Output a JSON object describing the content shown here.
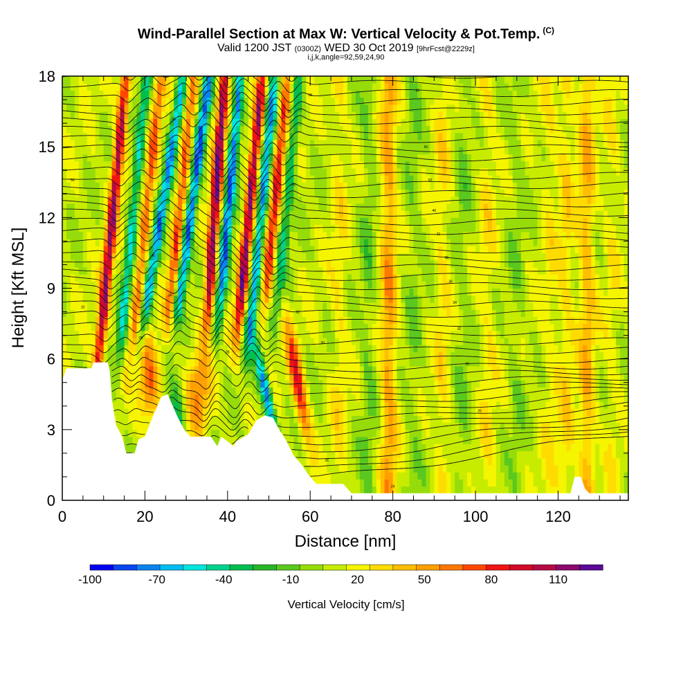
{
  "header": {
    "title": "Wind-Parallel Section at Max W: Vertical Velocity & Pot.Temp.",
    "copyright_mark": "(C)",
    "subtitle_prefix": "Valid 1200 JST",
    "subtitle_utc": "(0300Z)",
    "subtitle_date": "WED 30 Oct 2019",
    "subtitle_forecast": "[9hrFcst@2229z]",
    "indices": "i,j,k,angle=92,59,24,90"
  },
  "chart_data": {
    "type": "heatmap",
    "xlabel": "Distance [nm]",
    "ylabel": "Height [Kft MSL]",
    "xlim": [
      0,
      137
    ],
    "ylim": [
      0,
      18
    ],
    "x_ticks": [
      0,
      20,
      40,
      60,
      80,
      100,
      120
    ],
    "y_ticks": [
      0,
      3,
      6,
      9,
      12,
      15,
      18
    ],
    "colorbar": {
      "title": "Vertical Velocity [cm/s]",
      "min": -100,
      "max": 120,
      "step": 10,
      "tick_values": [
        -100,
        -70,
        -40,
        -10,
        20,
        50,
        80,
        110
      ],
      "tick_labels": [
        "-100",
        "-70",
        "-40",
        "-10",
        "20",
        "50",
        "80",
        "110"
      ],
      "colors": [
        "#0000f0",
        "#0a46f0",
        "#0a82f0",
        "#00bef0",
        "#00e6dc",
        "#00d28c",
        "#00be50",
        "#28b428",
        "#5ac81e",
        "#96dc0a",
        "#c8ec00",
        "#f5f500",
        "#ffdc00",
        "#ffbe00",
        "#ffa000",
        "#ff7800",
        "#ff4600",
        "#f01414",
        "#d20a28",
        "#b40a46",
        "#8c0a6e",
        "#5a0a96"
      ]
    },
    "terrain_profile": [
      [
        0,
        5.1
      ],
      [
        1,
        5.6
      ],
      [
        7,
        5.6
      ],
      [
        7.5,
        5.85
      ],
      [
        11,
        5.85
      ],
      [
        11.5,
        5.5
      ],
      [
        12,
        4.3
      ],
      [
        13,
        3.2
      ],
      [
        14.5,
        2.7
      ],
      [
        15.5,
        2.0
      ],
      [
        17.5,
        2.0
      ],
      [
        18.5,
        2.6
      ],
      [
        20,
        2.7
      ],
      [
        22,
        3.6
      ],
      [
        24,
        4.4
      ],
      [
        25.5,
        4.5
      ],
      [
        26.5,
        4.1
      ],
      [
        28,
        3.5
      ],
      [
        29.5,
        3.0
      ],
      [
        31,
        2.7
      ],
      [
        36,
        2.7
      ],
      [
        37.5,
        2.3
      ],
      [
        38.5,
        2.7
      ],
      [
        40,
        2.5
      ],
      [
        41.5,
        2.3
      ],
      [
        42,
        2.5
      ],
      [
        45,
        2.8
      ],
      [
        47,
        3.4
      ],
      [
        49,
        3.6
      ],
      [
        51,
        3.5
      ],
      [
        52.5,
        3.0
      ],
      [
        54,
        2.6
      ],
      [
        56,
        1.9
      ],
      [
        58,
        1.5
      ],
      [
        59.5,
        1.1
      ],
      [
        61.5,
        0.7
      ],
      [
        68,
        0.7
      ],
      [
        70,
        0.3
      ],
      [
        123,
        0.3
      ],
      [
        124,
        1.0
      ],
      [
        125.5,
        1.0
      ],
      [
        126.5,
        0.5
      ],
      [
        127.5,
        0.3
      ],
      [
        137,
        0.3
      ]
    ],
    "theta_contour_interval_K": 2,
    "theta_contour_labels": [
      {
        "x": 5,
        "y": 8.2,
        "text": "32"
      },
      {
        "x": 2.5,
        "y": 13.6,
        "text": "50"
      },
      {
        "x": 19,
        "y": 6.9,
        "text": "28"
      },
      {
        "x": 22,
        "y": 10.4,
        "text": "40"
      },
      {
        "x": 26,
        "y": 8.7,
        "text": "34"
      },
      {
        "x": 27,
        "y": 16.2,
        "text": "56"
      },
      {
        "x": 31,
        "y": 14.4,
        "text": "52"
      },
      {
        "x": 36,
        "y": 7.9,
        "text": "30"
      },
      {
        "x": 40,
        "y": 6.3,
        "text": "28"
      },
      {
        "x": 55,
        "y": 16.5,
        "text": "56"
      },
      {
        "x": 56,
        "y": 13.4,
        "text": "52"
      },
      {
        "x": 57,
        "y": 8.0,
        "text": "32"
      },
      {
        "x": 60,
        "y": 17.2,
        "text": "58"
      },
      {
        "x": 63,
        "y": 6.7,
        "text": "30"
      },
      {
        "x": 64,
        "y": 1.7,
        "text": "26"
      },
      {
        "x": 80,
        "y": 0.6,
        "text": "24"
      },
      {
        "x": 86,
        "y": 17.4,
        "text": "60"
      },
      {
        "x": 88,
        "y": 15.0,
        "text": "56"
      },
      {
        "x": 89,
        "y": 13.6,
        "text": "52"
      },
      {
        "x": 90,
        "y": 12.3,
        "text": "46"
      },
      {
        "x": 91,
        "y": 11.3,
        "text": "42"
      },
      {
        "x": 93,
        "y": 10.3,
        "text": "38"
      },
      {
        "x": 94,
        "y": 9.3,
        "text": "36"
      },
      {
        "x": 95,
        "y": 8.4,
        "text": "34"
      },
      {
        "x": 96,
        "y": 7.3,
        "text": "32"
      },
      {
        "x": 98,
        "y": 5.8,
        "text": "28"
      },
      {
        "x": 101,
        "y": 3.8,
        "text": "26"
      }
    ]
  }
}
